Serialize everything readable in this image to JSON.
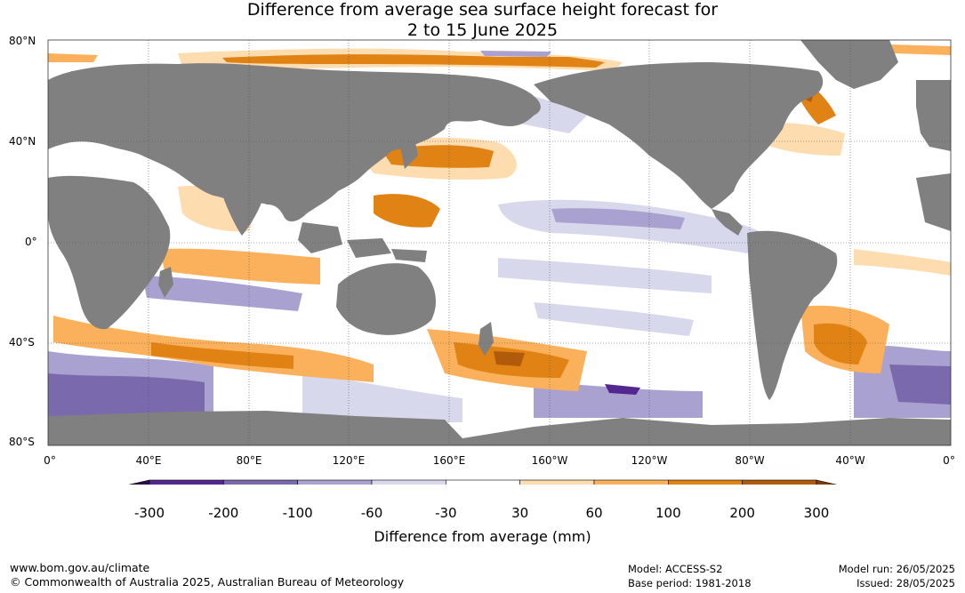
{
  "title_line1": "Difference from average sea surface height forecast for",
  "title_line2": "2 to 15 June 2025",
  "lat_labels": [
    "80°N",
    "40°N",
    "0°",
    "40°S",
    "80°S"
  ],
  "lon_labels": [
    "0°",
    "40°E",
    "80°E",
    "120°E",
    "160°E",
    "160°W",
    "120°W",
    "80°W",
    "40°W",
    "0°"
  ],
  "colorbar": {
    "ticks": [
      "-300",
      "-200",
      "-100",
      "-60",
      "-30",
      "30",
      "60",
      "100",
      "200",
      "300"
    ],
    "colors": [
      "#2d0a4e",
      "#54278f",
      "#7a6aad",
      "#a9a1cf",
      "#d8d8ec",
      "#ffffff",
      "#fddcb0",
      "#fbb15b",
      "#e08214",
      "#b05a0c",
      "#7f3b08"
    ],
    "title": "Difference from average (mm)"
  },
  "map_colors": {
    "land": "#808080",
    "ocean": "#ffffff",
    "grid": "#555555"
  },
  "footer": {
    "url": "www.bom.gov.au/climate",
    "copyright": "© Commonwealth of Australia 2025, Australian Bureau of Meteorology",
    "model": "Model: ACCESS-S2",
    "base_period": "Base period: 1981-2018",
    "model_run": "Model run: 26/05/2025",
    "issued": "Issued: 28/05/2025"
  }
}
